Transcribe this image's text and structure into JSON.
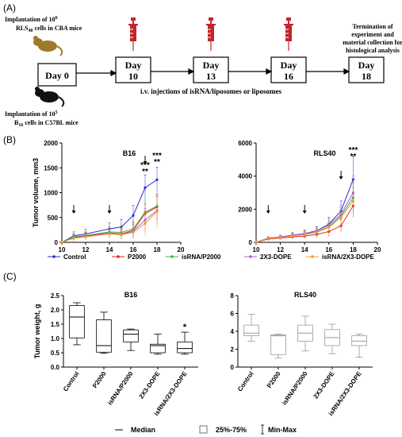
{
  "panels": {
    "a": "(A)",
    "b": "(B)",
    "c": "(C)"
  },
  "timeline": {
    "top_note_line1": "Implantation of 10",
    "top_note_sup": "6",
    "top_note_line2_a": "RLS",
    "top_note_line2_sub": "40",
    "top_note_line2_b": " cells in CBA mice",
    "bottom_note_line1": "Implantation of 10",
    "bottom_note_sup": "5",
    "bottom_note_line2_a": "B",
    "bottom_note_line2_sub": "16",
    "bottom_note_line2_b": " cells in C57BL mice",
    "days": [
      {
        "line1": "Day 0",
        "line2": ""
      },
      {
        "line1": "Day",
        "line2": "10"
      },
      {
        "line1": "Day",
        "line2": "13"
      },
      {
        "line1": "Day",
        "line2": "16"
      },
      {
        "line1": "Day",
        "line2": "18"
      }
    ],
    "injection_note": "i.v. injections of isRNA/liposomes or liposomes",
    "termination_note": [
      "Termination of",
      "experiment and",
      "material collection for",
      "histological analysis"
    ],
    "colors": {
      "mouse_top": "#a07a2a",
      "mouse_bottom": "#111111",
      "syringe": "#c0272d"
    }
  },
  "colors": {
    "Control": "#2b2bd6",
    "P2000": "#e8241c",
    "isRNA/P2000": "#37b34a",
    "2X3-DOPE": "#b05fd0",
    "isRNA/2X3-DOPE": "#f29a2e"
  },
  "legend_B": [
    "Control",
    "P2000",
    "isRNA/P2000",
    "2X3-DOPE",
    "isRNA/2X3-DOPE"
  ],
  "legend_C": {
    "median": "Median",
    "iqr": "25%-75%",
    "range": "Min-Max"
  },
  "chart_data": [
    {
      "type": "line",
      "title": "B16",
      "xlabel": "",
      "ylabel": "Tumor volume, mm3",
      "xlim": [
        10,
        20
      ],
      "ylim": [
        0,
        2000
      ],
      "xticks": [
        10,
        12,
        14,
        16,
        18,
        20
      ],
      "yticks": [
        0,
        500,
        1000,
        1500,
        2000
      ],
      "x": [
        10,
        11,
        12,
        14,
        15,
        16,
        17,
        18
      ],
      "series": [
        {
          "name": "Control",
          "values": [
            0,
            130,
            170,
            270,
            310,
            540,
            1100,
            1260
          ],
          "err": [
            0,
            80,
            90,
            120,
            150,
            200,
            250,
            250
          ]
        },
        {
          "name": "P2000",
          "values": [
            0,
            100,
            130,
            190,
            170,
            240,
            580,
            710
          ],
          "err": [
            0,
            60,
            70,
            90,
            100,
            150,
            200,
            250
          ]
        },
        {
          "name": "isRNA/P2000",
          "values": [
            0,
            110,
            140,
            210,
            200,
            270,
            610,
            730
          ],
          "err": [
            0,
            60,
            70,
            100,
            110,
            160,
            220,
            260
          ]
        },
        {
          "name": "2X3-DOPE",
          "values": [
            0,
            90,
            120,
            180,
            160,
            220,
            450,
            640
          ],
          "err": [
            0,
            60,
            60,
            90,
            90,
            140,
            230,
            280
          ]
        },
        {
          "name": "isRNA/2X3-DOPE",
          "values": [
            0,
            80,
            110,
            170,
            150,
            200,
            380,
            620
          ],
          "err": [
            0,
            50,
            60,
            80,
            90,
            130,
            250,
            320
          ]
        }
      ],
      "arrows_at": [
        11,
        14,
        17
      ],
      "annotations": [
        {
          "x": 17,
          "lines": [
            "***",
            "**"
          ]
        },
        {
          "x": 18,
          "lines": [
            "***",
            "**"
          ]
        }
      ]
    },
    {
      "type": "line",
      "title": "RLS40",
      "xlabel": "",
      "ylabel": "",
      "xlim": [
        10,
        20
      ],
      "ylim": [
        0,
        6000
      ],
      "xticks": [
        10,
        12,
        14,
        16,
        18,
        20
      ],
      "yticks": [
        0,
        2000,
        4000,
        6000
      ],
      "x": [
        10,
        11,
        12,
        13,
        14,
        15,
        16,
        17,
        18
      ],
      "series": [
        {
          "name": "Control",
          "values": [
            0,
            250,
            330,
            430,
            530,
            700,
            1100,
            1900,
            3800
          ],
          "err": [
            0,
            80,
            100,
            150,
            200,
            250,
            400,
            600,
            1400
          ]
        },
        {
          "name": "P2000",
          "values": [
            0,
            200,
            260,
            330,
            380,
            480,
            650,
            1000,
            2200
          ],
          "err": [
            0,
            70,
            90,
            120,
            150,
            200,
            300,
            400,
            700
          ]
        },
        {
          "name": "isRNA/P2000",
          "values": [
            0,
            240,
            300,
            400,
            480,
            620,
            950,
            1600,
            2700
          ],
          "err": [
            0,
            80,
            100,
            140,
            180,
            230,
            350,
            500,
            900
          ]
        },
        {
          "name": "2X3-DOPE",
          "values": [
            0,
            260,
            320,
            420,
            510,
            680,
            1050,
            1700,
            3000
          ],
          "err": [
            0,
            80,
            100,
            150,
            190,
            250,
            380,
            550,
            1000
          ]
        },
        {
          "name": "isRNA/2X3-DOPE",
          "values": [
            0,
            230,
            290,
            390,
            470,
            600,
            900,
            1500,
            2500
          ],
          "err": [
            0,
            70,
            90,
            130,
            170,
            220,
            330,
            480,
            800
          ]
        }
      ],
      "arrows_at": [
        11,
        14,
        17
      ],
      "annotations": [
        {
          "x": 18,
          "lines": [
            "***",
            "**"
          ]
        }
      ]
    },
    {
      "type": "box",
      "title": "B16",
      "xlabel": "",
      "ylabel": "Tumor weight, g",
      "ylim": [
        0,
        2.5
      ],
      "yticks": [
        0.0,
        0.5,
        1.0,
        1.5,
        2.0,
        2.5
      ],
      "categories": [
        "Control",
        "P2000",
        "isRNA/P2000",
        "2X3-DOPE",
        "isRNA/2X3-DOPE"
      ],
      "boxes": [
        {
          "min": 0.78,
          "q1": 1.02,
          "median": 1.75,
          "q3": 2.15,
          "max": 2.25
        },
        {
          "min": 0.48,
          "q1": 0.52,
          "median": 0.75,
          "q3": 1.65,
          "max": 1.92
        },
        {
          "min": 0.58,
          "q1": 0.88,
          "median": 1.15,
          "q3": 1.3,
          "max": 1.33
        },
        {
          "min": 0.45,
          "q1": 0.5,
          "median": 0.75,
          "q3": 0.8,
          "max": 1.15
        },
        {
          "min": 0.45,
          "q1": 0.5,
          "median": 0.65,
          "q3": 0.88,
          "max": 1.22
        }
      ],
      "annotations": [
        {
          "category": "isRNA/2X3-DOPE",
          "text": "*"
        }
      ]
    },
    {
      "type": "box",
      "title": "RLS40",
      "xlabel": "",
      "ylabel": "",
      "ylim": [
        0,
        8
      ],
      "yticks": [
        0,
        2,
        4,
        6,
        8
      ],
      "categories": [
        "Control",
        "P2000",
        "isRNA/P2000",
        "2X3-DOPE",
        "isRNA/2X3-DOPE"
      ],
      "boxes": [
        {
          "min": 2.9,
          "q1": 3.5,
          "median": 3.8,
          "q3": 4.7,
          "max": 5.9
        },
        {
          "min": 1.0,
          "q1": 1.4,
          "median": 3.5,
          "q3": 3.6,
          "max": 3.7
        },
        {
          "min": 1.8,
          "q1": 2.9,
          "median": 3.8,
          "q3": 4.7,
          "max": 5.7
        },
        {
          "min": 1.5,
          "q1": 2.4,
          "median": 3.3,
          "q3": 4.2,
          "max": 4.8
        },
        {
          "min": 1.1,
          "q1": 2.4,
          "median": 2.9,
          "q3": 3.5,
          "max": 3.7
        }
      ]
    }
  ]
}
